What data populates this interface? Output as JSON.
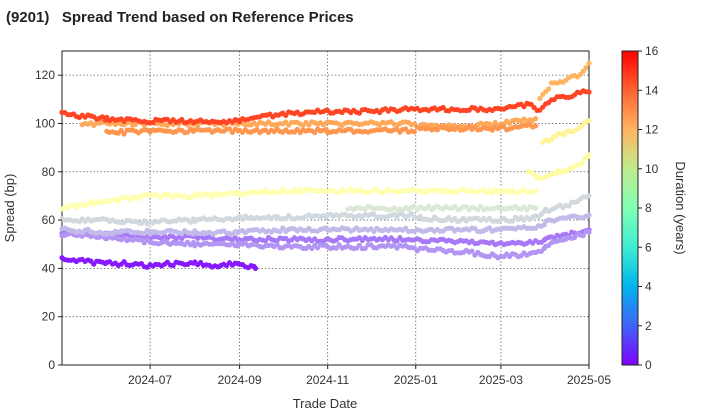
{
  "title": "(9201)   Spread Trend based on Reference Prices",
  "chart_data": {
    "type": "scatter",
    "title": "(9201)   Spread Trend based on Reference Prices",
    "xlabel": "Trade Date",
    "ylabel": "Spread (bp)",
    "xlim": [
      "2024-05-01",
      "2025-05-01"
    ],
    "ylim": [
      0,
      130
    ],
    "x_ticks": [
      "2024-07",
      "2024-09",
      "2024-11",
      "2025-01",
      "2025-03",
      "2025-05"
    ],
    "y_ticks": [
      0,
      20,
      40,
      60,
      80,
      100,
      120
    ],
    "grid": true,
    "colorbar": {
      "label": "Duration (years)",
      "range": [
        0,
        16
      ],
      "ticks": [
        0,
        2,
        4,
        6,
        8,
        10,
        12,
        14,
        16
      ],
      "colormap": "rainbow"
    },
    "series": [
      {
        "duration": 0.5,
        "values": [
          [
            "2024-05-01",
            44
          ],
          [
            "2024-05-15",
            43
          ],
          [
            "2024-06-01",
            42
          ],
          [
            "2024-06-15",
            42
          ],
          [
            "2024-07-01",
            41
          ],
          [
            "2024-07-15",
            42
          ],
          [
            "2024-08-01",
            42
          ],
          [
            "2024-08-15",
            41
          ],
          [
            "2024-09-01",
            42
          ],
          [
            "2024-09-12",
            40
          ]
        ]
      },
      {
        "duration": 2.5,
        "values": [
          [
            "2024-05-01",
            55
          ],
          [
            "2024-06-01",
            54
          ],
          [
            "2024-07-01",
            53
          ],
          [
            "2024-08-01",
            53
          ],
          [
            "2024-09-01",
            52
          ],
          [
            "2024-10-01",
            52
          ],
          [
            "2024-11-01",
            52
          ],
          [
            "2024-12-01",
            52
          ],
          [
            "2024-12-31",
            52
          ],
          [
            "2025-01-02",
            52
          ],
          [
            "2025-02-01",
            51
          ],
          [
            "2025-03-01",
            50
          ],
          [
            "2025-03-25",
            51
          ],
          [
            "2025-04-01",
            52
          ],
          [
            "2025-04-15",
            54
          ],
          [
            "2025-05-01",
            56
          ]
        ]
      },
      {
        "duration": 3.2,
        "values": [
          [
            "2024-05-01",
            54
          ],
          [
            "2024-06-01",
            53
          ],
          [
            "2024-07-01",
            51
          ],
          [
            "2024-08-01",
            50
          ],
          [
            "2024-09-01",
            50
          ],
          [
            "2024-10-01",
            49
          ],
          [
            "2024-11-01",
            49
          ],
          [
            "2024-12-01",
            49
          ],
          [
            "2024-12-31",
            49
          ],
          [
            "2025-01-02",
            48
          ],
          [
            "2025-02-01",
            47
          ],
          [
            "2025-03-01",
            45
          ],
          [
            "2025-03-25",
            46
          ],
          [
            "2025-04-01",
            49
          ],
          [
            "2025-04-15",
            52
          ],
          [
            "2025-05-01",
            55
          ]
        ]
      },
      {
        "duration": 4.2,
        "values": [
          [
            "2024-05-01",
            56
          ],
          [
            "2024-06-01",
            55
          ],
          [
            "2024-07-01",
            55
          ],
          [
            "2024-08-01",
            55
          ],
          [
            "2024-09-01",
            55
          ],
          [
            "2024-10-01",
            56
          ],
          [
            "2024-11-01",
            56
          ],
          [
            "2024-12-01",
            56
          ],
          [
            "2024-12-31",
            56
          ],
          [
            "2025-01-02",
            56
          ],
          [
            "2025-02-01",
            56
          ],
          [
            "2025-03-01",
            56
          ],
          [
            "2025-03-25",
            57
          ],
          [
            "2025-04-01",
            59
          ],
          [
            "2025-04-15",
            61
          ],
          [
            "2025-05-01",
            62
          ]
        ]
      },
      {
        "duration": 5.2,
        "values": [
          [
            "2024-05-01",
            60
          ],
          [
            "2024-06-01",
            60
          ],
          [
            "2024-07-01",
            59
          ],
          [
            "2024-08-01",
            60
          ],
          [
            "2024-09-01",
            61
          ],
          [
            "2024-10-01",
            61
          ],
          [
            "2024-11-01",
            62
          ],
          [
            "2024-12-01",
            62
          ],
          [
            "2024-12-31",
            62
          ],
          [
            "2025-01-02",
            61
          ],
          [
            "2025-02-01",
            60
          ],
          [
            "2025-03-01",
            60
          ],
          [
            "2025-03-25",
            61
          ],
          [
            "2025-04-01",
            64
          ],
          [
            "2025-04-15",
            66
          ],
          [
            "2025-05-01",
            70
          ]
        ]
      },
      {
        "duration": 5.8,
        "values": [
          [
            "2024-11-15",
            65
          ],
          [
            "2024-12-01",
            65
          ],
          [
            "2024-12-31",
            65
          ],
          [
            "2025-01-02",
            65
          ],
          [
            "2025-02-01",
            65
          ],
          [
            "2025-03-01",
            65
          ],
          [
            "2025-03-25",
            65
          ]
        ]
      },
      {
        "duration": 8.2,
        "values": [
          [
            "2024-05-01",
            65
          ],
          [
            "2024-06-01",
            68
          ],
          [
            "2024-07-01",
            70
          ],
          [
            "2024-08-01",
            70
          ],
          [
            "2024-09-01",
            71
          ],
          [
            "2024-10-01",
            72
          ],
          [
            "2024-11-01",
            72
          ],
          [
            "2024-12-01",
            72
          ],
          [
            "2024-12-31",
            72
          ],
          [
            "2025-01-02",
            72
          ],
          [
            "2025-02-01",
            72
          ],
          [
            "2025-03-01",
            72
          ],
          [
            "2025-03-25",
            72
          ]
        ]
      },
      {
        "duration": 8.8,
        "values": [
          [
            "2025-03-20",
            80
          ],
          [
            "2025-03-28",
            77
          ],
          [
            "2025-04-05",
            79
          ],
          [
            "2025-04-10",
            80
          ],
          [
            "2025-04-20",
            81
          ],
          [
            "2025-05-01",
            87
          ]
        ]
      },
      {
        "duration": 9.5,
        "values": [
          [
            "2025-03-30",
            92
          ],
          [
            "2025-04-08",
            95
          ],
          [
            "2025-04-20",
            97
          ],
          [
            "2025-05-01",
            101
          ]
        ]
      },
      {
        "duration": 12.3,
        "values": [
          [
            "2024-05-15",
            100
          ],
          [
            "2024-06-01",
            100
          ],
          [
            "2024-07-01",
            100
          ],
          [
            "2024-08-01",
            100
          ],
          [
            "2024-09-01",
            100
          ],
          [
            "2024-10-01",
            100
          ],
          [
            "2024-11-01",
            100
          ],
          [
            "2024-12-01",
            100
          ],
          [
            "2024-12-31",
            100
          ],
          [
            "2025-01-02",
            99
          ],
          [
            "2025-02-01",
            99
          ],
          [
            "2025-03-01",
            100
          ],
          [
            "2025-03-25",
            102
          ]
        ]
      },
      {
        "duration": 12.8,
        "values": [
          [
            "2024-06-01",
            96
          ],
          [
            "2024-07-01",
            97
          ],
          [
            "2024-08-01",
            97
          ],
          [
            "2024-09-01",
            97
          ],
          [
            "2024-10-01",
            97
          ],
          [
            "2024-11-01",
            97
          ],
          [
            "2024-12-01",
            97
          ],
          [
            "2024-12-31",
            97
          ],
          [
            "2025-01-02",
            98
          ],
          [
            "2025-02-01",
            98
          ],
          [
            "2025-03-01",
            98
          ],
          [
            "2025-03-25",
            99
          ]
        ]
      },
      {
        "duration": 12.0,
        "values": [
          [
            "2025-03-28",
            110
          ],
          [
            "2025-04-05",
            116
          ],
          [
            "2025-04-15",
            118
          ],
          [
            "2025-04-25",
            120
          ],
          [
            "2025-05-01",
            125
          ]
        ]
      },
      {
        "duration": 14.6,
        "values": [
          [
            "2024-05-01",
            104
          ],
          [
            "2024-06-01",
            102
          ],
          [
            "2024-07-01",
            101
          ],
          [
            "2024-08-01",
            101
          ],
          [
            "2024-09-01",
            101
          ],
          [
            "2024-09-20",
            103
          ],
          [
            "2024-10-01",
            104
          ],
          [
            "2024-11-01",
            105
          ],
          [
            "2024-12-01",
            105
          ],
          [
            "2024-12-31",
            106
          ],
          [
            "2025-01-02",
            106
          ],
          [
            "2025-02-01",
            106
          ],
          [
            "2025-03-01",
            106
          ],
          [
            "2025-03-20",
            108
          ],
          [
            "2025-03-28",
            105
          ],
          [
            "2025-04-05",
            110
          ],
          [
            "2025-04-15",
            111
          ],
          [
            "2025-04-25",
            113
          ],
          [
            "2025-05-01",
            113
          ]
        ]
      }
    ]
  }
}
